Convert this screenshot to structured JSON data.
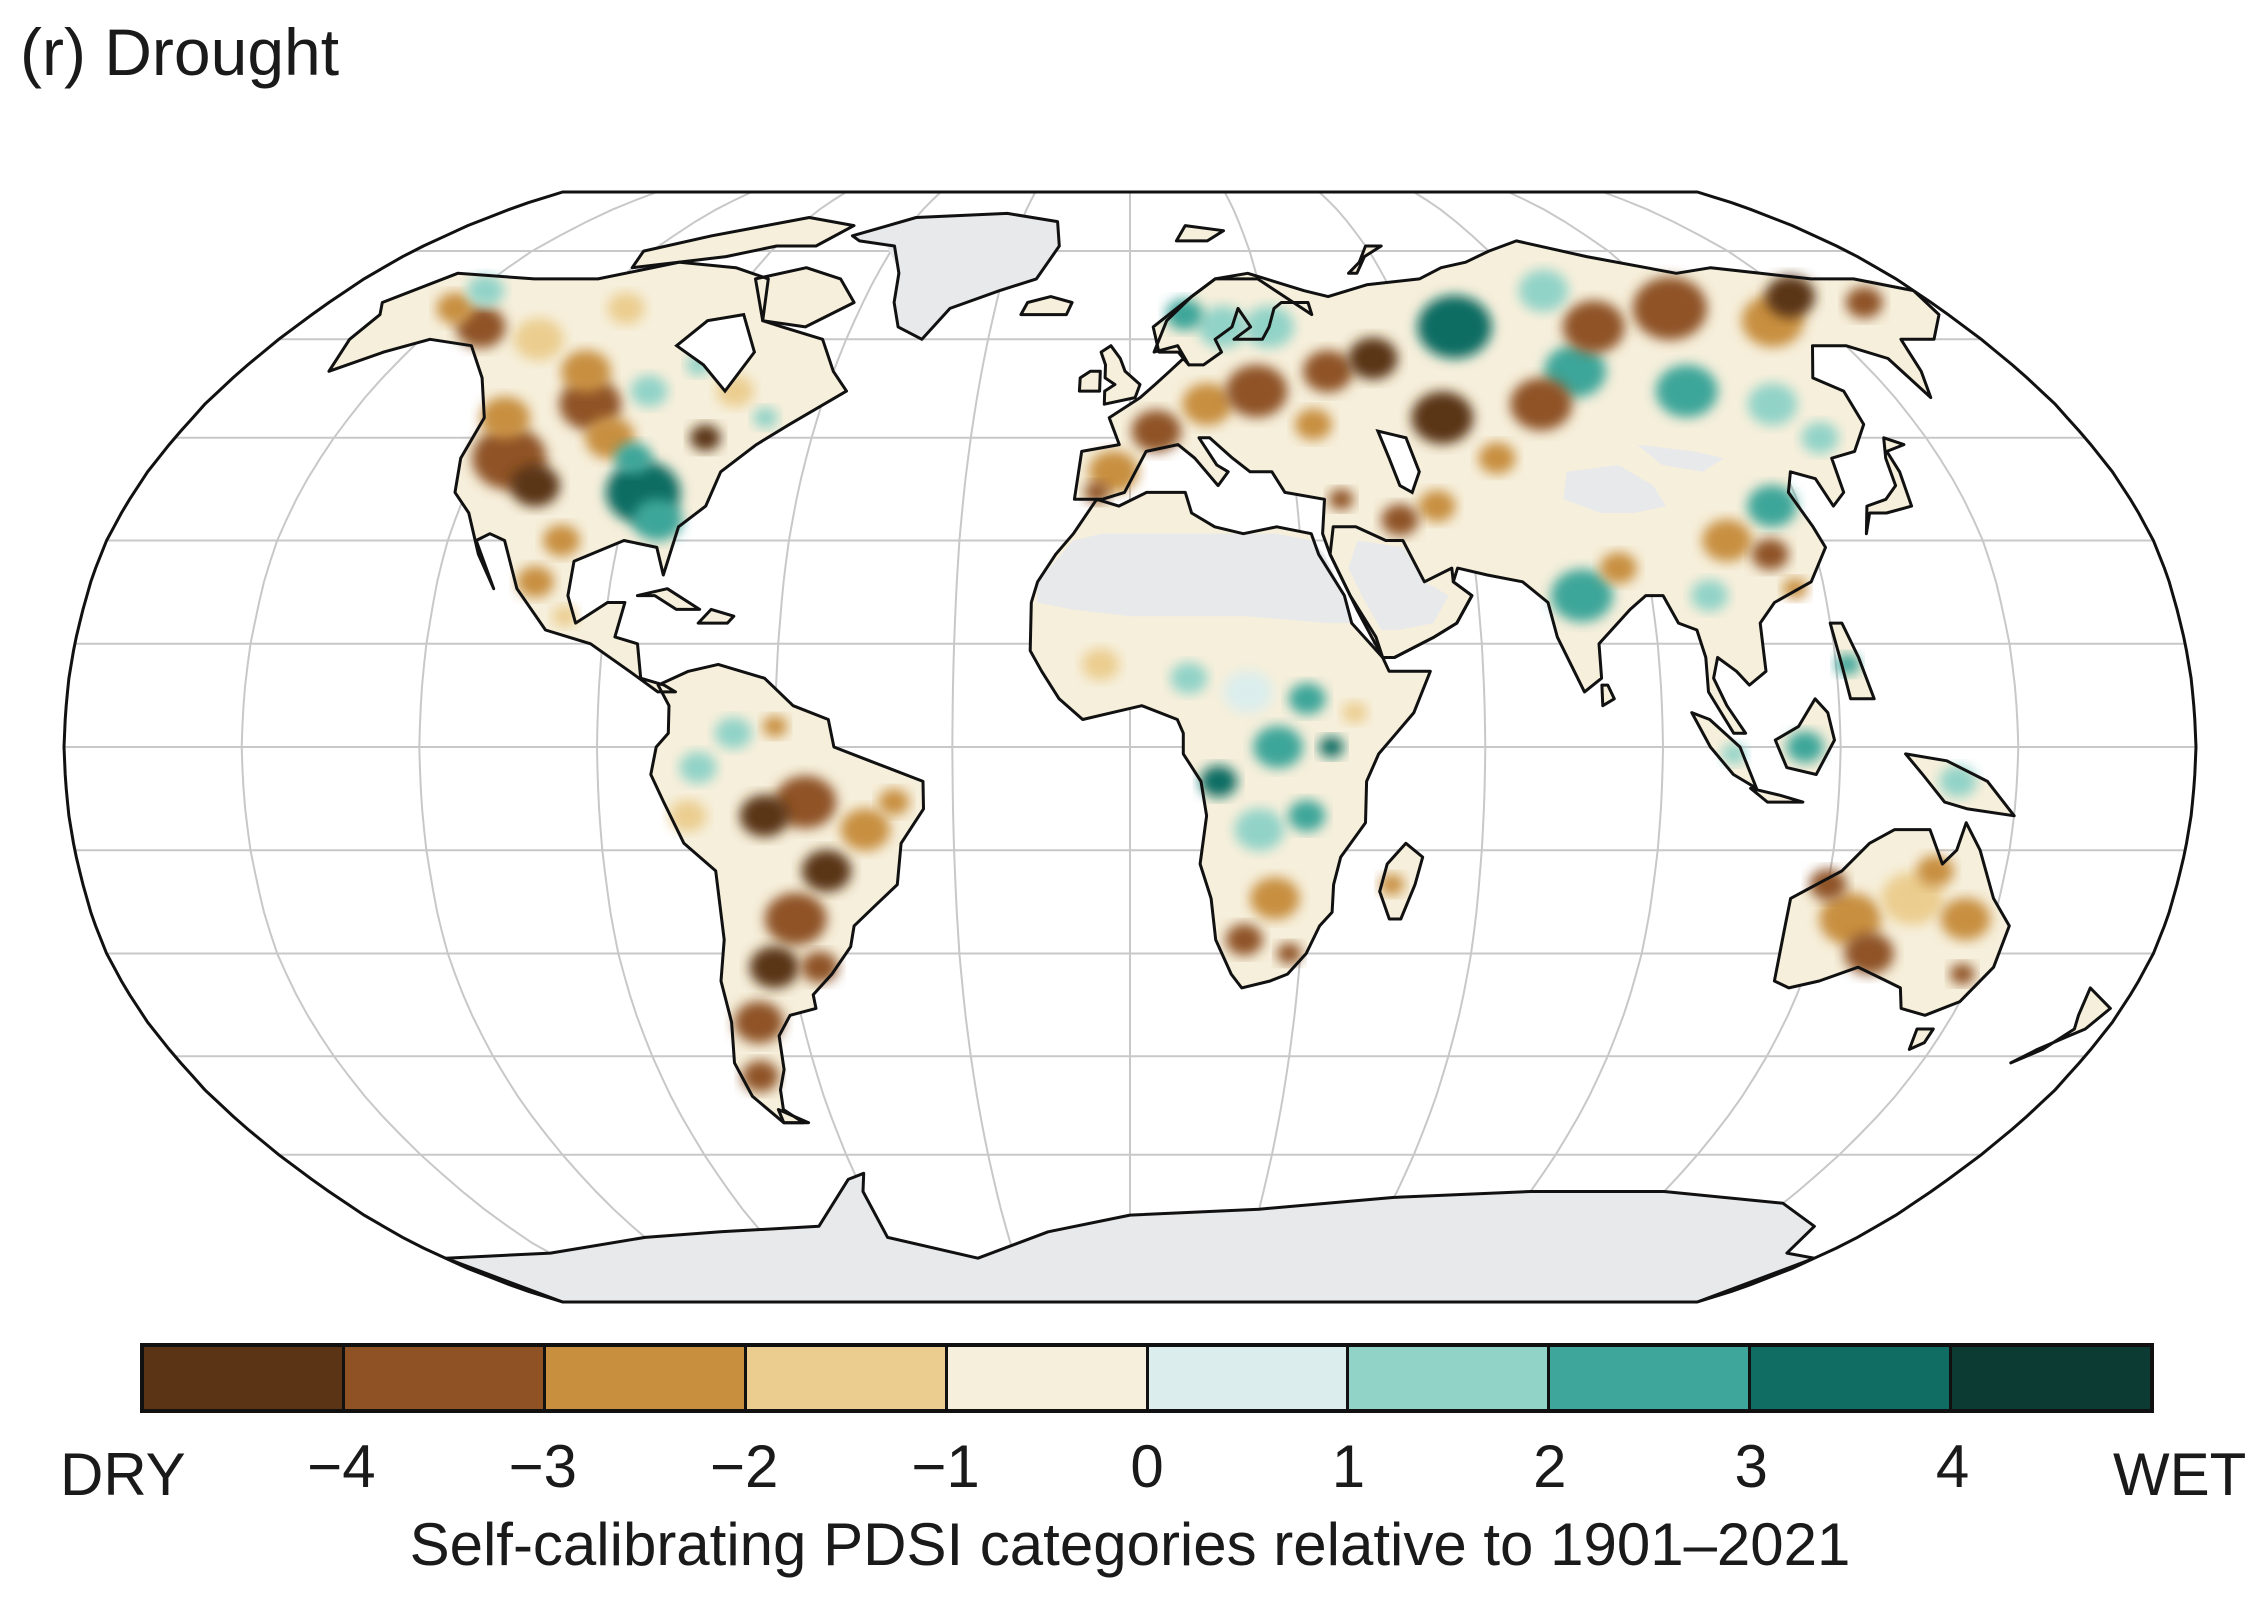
{
  "title": "(r) Drought",
  "map": {
    "projection": "Robinson",
    "land_missing_color": "#e8e9eb",
    "ocean_color": "#ffffff",
    "coastline_color": "#111111",
    "graticule_color": "#c8c8c8"
  },
  "colorbar": {
    "colors": [
      "#5a3414",
      "#8f5225",
      "#c88f3f",
      "#ebcd8f",
      "#f6efdb",
      "#dbeeed",
      "#92d3c8",
      "#3ea69a",
      "#106d63",
      "#0b3b33"
    ],
    "ticks": [
      "−4",
      "−3",
      "−2",
      "−1",
      "0",
      "1",
      "2",
      "3",
      "4"
    ],
    "left_label": "DRY",
    "right_label": "WET",
    "caption": "Self-calibrating PDSI categories relative to 1901–2021"
  }
}
